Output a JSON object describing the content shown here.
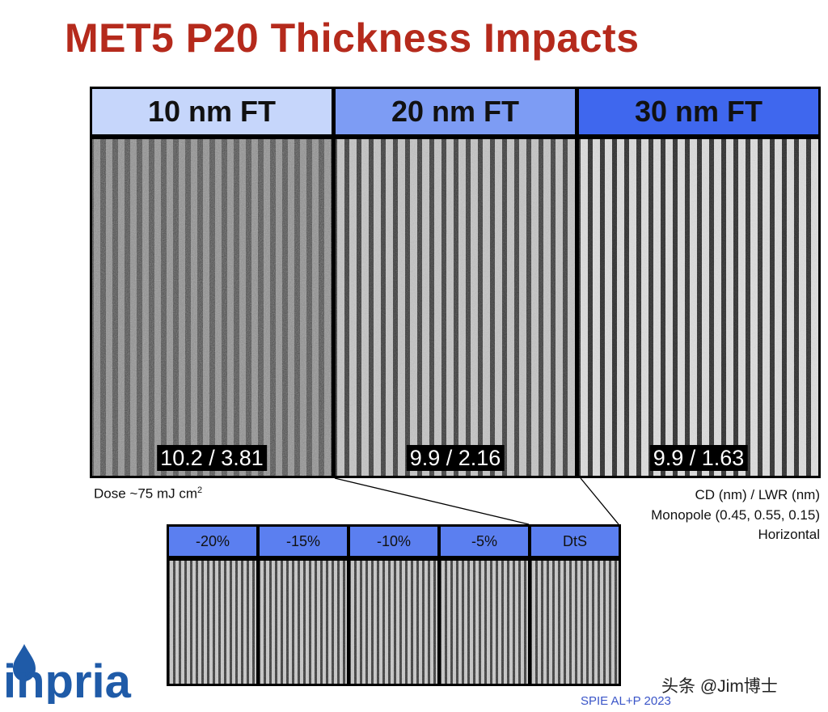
{
  "title": "MET5 P20 Thickness Impacts",
  "panels": [
    {
      "label": "10 nm FT",
      "measurement": "10.2 / 3.81",
      "header_color": "#c6d6fb"
    },
    {
      "label": "20 nm FT",
      "measurement": "9.9 / 2.16",
      "header_color": "#7d9cf4"
    },
    {
      "label": "30 nm FT",
      "measurement": "9.9 / 1.63",
      "header_color": "#3f67ee"
    }
  ],
  "dose_label": "Dose ~75 mJ cm",
  "dose_superscript": "2",
  "right_notes": {
    "line1": "CD (nm) / LWR (nm)",
    "line2": "Monopole (0.45, 0.55, 0.15)",
    "line3": "Horizontal"
  },
  "dose_steps": [
    "-20%",
    "-15%",
    "-10%",
    "-5%",
    "DtS"
  ],
  "logo_text": "inpria",
  "source": "SPIE AL+P 2023",
  "watermark": "头条 @Jim博士"
}
